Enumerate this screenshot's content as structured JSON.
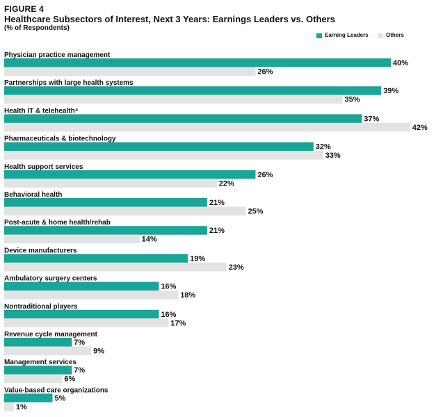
{
  "figure_label": "FIGURE 4",
  "title": "Healthcare Subsectors of Interest, Next 3 Years: Earnings Leaders vs. Others",
  "subtitle": "(% of Respondents)",
  "colors": {
    "earning_leaders": "#1aa597",
    "others": "#e3e3e3"
  },
  "chart_data": {
    "type": "bar",
    "orientation": "horizontal",
    "title": "Healthcare Subsectors of Interest, Next 3 Years: Earnings Leaders vs. Others",
    "subtitle": "(% of Respondents)",
    "legend_position": "top-right",
    "grid": false,
    "xlim": [
      0,
      42
    ],
    "categories": [
      "Physician practice management",
      "Partnerships with large health systems",
      "Health IT & telehealth⁴",
      "Pharmaceuticals & biotechnology",
      "Health support services",
      "Behavioral health",
      "Post-acute & home health/rehab",
      "Device manufacturers",
      "Ambulatory surgery centers",
      "Nontraditional players",
      "Revenue cycle management",
      "Management services",
      "Value-based care organizations"
    ],
    "series": [
      {
        "name": "Earning Leaders",
        "values": [
          40,
          39,
          37,
          32,
          26,
          21,
          21,
          19,
          16,
          16,
          7,
          7,
          5
        ]
      },
      {
        "name": "Others",
        "values": [
          26,
          35,
          42,
          33,
          22,
          25,
          14,
          23,
          18,
          17,
          9,
          6,
          1
        ]
      }
    ],
    "value_suffix": "%"
  }
}
